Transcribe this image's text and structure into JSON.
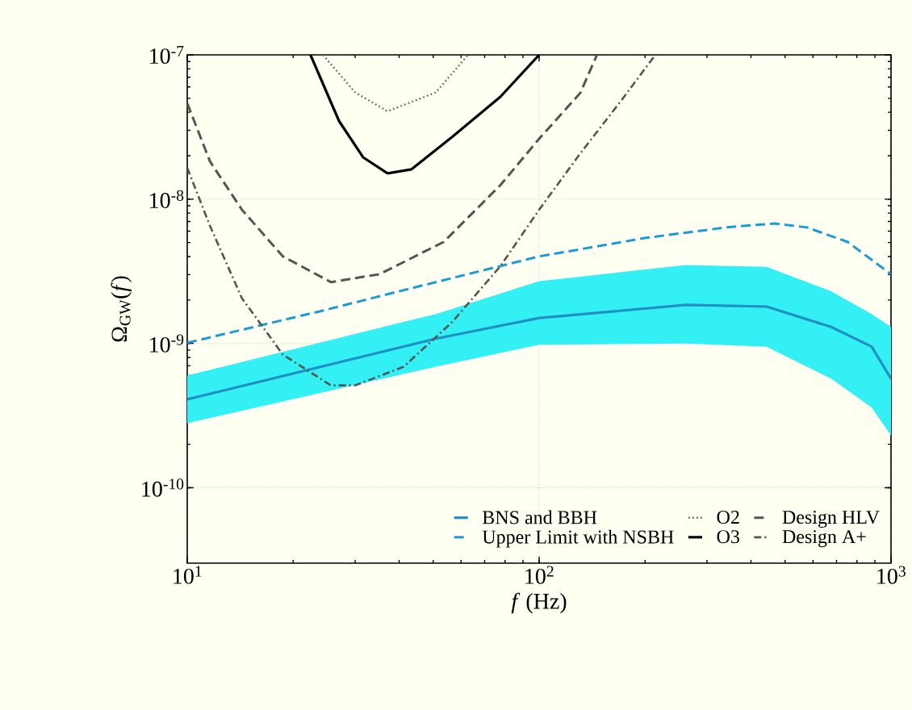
{
  "chart_data": {
    "type": "line",
    "xlabel": "*f* (Hz)",
    "ylabel": "Ω$_{GW}$(*f*)",
    "log": "xy",
    "grid": true,
    "legend": "bottom right",
    "marker": "none",
    "xlim": [
      10,
      1000
    ],
    "ylim": [
      3e-11,
      1e-07
    ],
    "xticks": [
      {
        "value": 10,
        "label": "10$^{1}$"
      },
      {
        "value": 100,
        "label": "10$^{2}$"
      },
      {
        "value": 1000,
        "label": "10$^{3}$"
      }
    ],
    "yticks": [
      {
        "value": 1e-10,
        "label": "10$^{-10}$"
      },
      {
        "value": 1e-09,
        "label": "10$^{-9}$"
      },
      {
        "value": 1e-08,
        "label": "10$^{-8}$"
      },
      {
        "value": 1e-07,
        "label": "10$^{-7}$"
      }
    ],
    "series": [
      {
        "name": "BNS and BBH",
        "color": "#1f8fc4",
        "line_style": "solid",
        "x": [
          10,
          50.9,
          100,
          261,
          443,
          676,
          881,
          1000
        ],
        "values": [
          4.1e-10,
          1.08e-09,
          1.5e-09,
          1.85e-09,
          1.8e-09,
          1.3e-09,
          9.5e-10,
          5.7e-10
        ],
        "lower": [
          2.8e-10,
          6.9e-10,
          9.8e-10,
          1e-09,
          9.5e-10,
          5.7e-10,
          3.6e-10,
          2.3e-10
        ],
        "upper": [
          6e-10,
          1.6e-09,
          2.7e-09,
          3.5e-09,
          3.4e-09,
          2.3e-09,
          1.6e-09,
          1.3e-09
        ]
      },
      {
        "name": "Upper Limit with NSBH",
        "color": "#1a9ad6",
        "line_style": "dashed",
        "x": [
          10,
          24.3,
          41.2,
          100,
          201,
          340,
          467,
          577,
          752,
          1000
        ],
        "values": [
          1.01e-09,
          1.69e-09,
          2.34e-09,
          4.01e-09,
          5.39e-09,
          6.37e-09,
          6.79e-09,
          6.37e-09,
          5.06e-09,
          3.02e-09
        ]
      },
      {
        "name": "O2",
        "color": "#777777",
        "line_style": "dotted",
        "x": [
          24.3,
          30.0,
          37.1,
          50.9,
          62.8
        ],
        "values": [
          1e-07,
          5.5e-08,
          4.06e-08,
          5.5e-08,
          1e-07
        ]
      },
      {
        "name": "O3",
        "color": "#000000",
        "line_style": "solid",
        "x": [
          22.4,
          27.0,
          31.6,
          37.1,
          43.4,
          56.5,
          77.6,
          100
        ],
        "values": [
          1e-07,
          3.48e-08,
          1.95e-08,
          1.51e-08,
          1.61e-08,
          2.69e-08,
          5.12e-08,
          1e-07
        ]
      },
      {
        "name": "Design HLV",
        "color": "#555555",
        "line_style": "dashed",
        "x": [
          10,
          11.6,
          14.3,
          18.7,
          25.6,
          35.2,
          53.6,
          77.6,
          100,
          131,
          146
        ],
        "values": [
          4.62e-08,
          1.83e-08,
          8.45e-09,
          4.01e-09,
          2.66e-09,
          3.02e-09,
          5.06e-09,
          1.25e-08,
          2.62e-08,
          5.46e-08,
          1e-07
        ]
      },
      {
        "name": "Design A+",
        "color": "#555555",
        "line_style": "dashdot",
        "x": [
          10,
          11.6,
          14.3,
          18.7,
          25.6,
          30.0,
          41.2,
          56.5,
          77.6,
          100,
          131,
          171,
          214
        ],
        "values": [
          1.65e-08,
          6.54e-09,
          2.06e-09,
          8.36e-10,
          5.12e-10,
          5.12e-10,
          6.89e-10,
          1.4e-09,
          3.43e-09,
          8.45e-09,
          2.08e-08,
          4.81e-08,
          1e-07
        ]
      }
    ]
  }
}
